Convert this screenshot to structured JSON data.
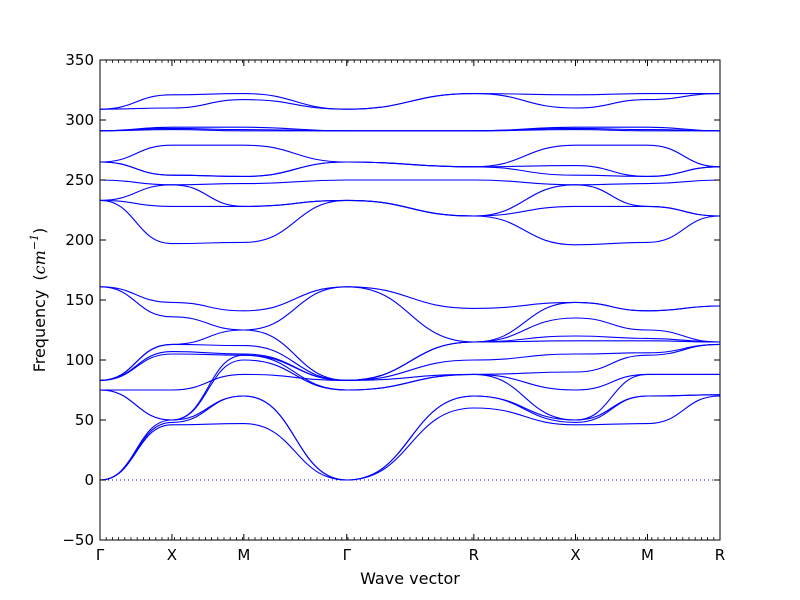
{
  "chart_data": {
    "type": "line",
    "title": "",
    "xlabel": "Wave vector",
    "ylabel": "Frequency",
    "ylabel_unit_open": "(",
    "ylabel_unit_base": "cm",
    "ylabel_unit_exp": "−1",
    "ylabel_unit_close": ")",
    "ylim": [
      -50,
      350
    ],
    "yticks": [
      -50,
      0,
      50,
      100,
      150,
      200,
      250,
      300,
      350
    ],
    "ytick_labels": [
      "−50",
      "0",
      "50",
      "100",
      "150",
      "200",
      "250",
      "300",
      "350"
    ],
    "xlim": [
      0,
      1
    ],
    "kpoints": [
      {
        "label": "Γ",
        "x": 0.0
      },
      {
        "label": "X",
        "x": 0.116
      },
      {
        "label": "M",
        "x": 0.232
      },
      {
        "label": "Γ",
        "x": 0.398
      },
      {
        "label": "R",
        "x": 0.603
      },
      {
        "label": "X",
        "x": 0.767
      },
      {
        "label": "M",
        "x": 0.883
      },
      {
        "label": "R",
        "x": 1.0
      }
    ],
    "zero_line": 0,
    "line_color": "#0000ff",
    "zero_line_color": "#0000ff",
    "grid": false,
    "legend": "none",
    "series": [
      {
        "y": [
          0,
          46,
          47,
          0,
          60,
          46,
          47,
          70
        ]
      },
      {
        "y": [
          0,
          48,
          70,
          0,
          70,
          48,
          70,
          71
        ]
      },
      {
        "y": [
          0,
          50,
          70,
          0,
          70,
          50,
          70,
          71
        ]
      },
      {
        "y": [
          75,
          50,
          100,
          75,
          88,
          50,
          88,
          88
        ]
      },
      {
        "y": [
          75,
          50,
          104,
          75,
          88,
          75,
          88,
          88
        ]
      },
      {
        "y": [
          75,
          75,
          88,
          83,
          88,
          90,
          104,
          113
        ]
      },
      {
        "y": [
          83,
          105,
          104,
          83,
          100,
          105,
          106,
          113
        ]
      },
      {
        "y": [
          83,
          107,
          105,
          83,
          115,
          116,
          116,
          115
        ]
      },
      {
        "y": [
          83,
          113,
          125,
          83,
          115,
          120,
          118,
          115
        ]
      },
      {
        "y": [
          83,
          113,
          112,
          83,
          115,
          135,
          125,
          115
        ]
      },
      {
        "y": [
          161,
          136,
          125,
          161,
          115,
          148,
          141,
          145
        ]
      },
      {
        "y": [
          161,
          148,
          141,
          161,
          143,
          148,
          141,
          145
        ]
      },
      {
        "y": [
          233,
          197,
          198,
          233,
          220,
          196,
          198,
          220
        ]
      },
      {
        "y": [
          233,
          228,
          228,
          233,
          220,
          228,
          228,
          220
        ]
      },
      {
        "y": [
          233,
          246,
          228,
          233,
          220,
          246,
          228,
          220
        ]
      },
      {
        "y": [
          250,
          246,
          247,
          250,
          250,
          246,
          247,
          250
        ]
      },
      {
        "y": [
          265,
          254,
          253,
          265,
          261,
          254,
          253,
          261
        ]
      },
      {
        "y": [
          265,
          254,
          253,
          265,
          261,
          262,
          253,
          261
        ]
      },
      {
        "y": [
          265,
          279,
          279,
          265,
          261,
          279,
          279,
          261
        ]
      },
      {
        "y": [
          291,
          292,
          291,
          291,
          291,
          292,
          291,
          291
        ]
      },
      {
        "y": [
          291,
          293,
          292,
          291,
          291,
          293,
          292,
          291
        ]
      },
      {
        "y": [
          291,
          294,
          294,
          291,
          291,
          294,
          294,
          291
        ]
      },
      {
        "y": [
          309,
          310,
          317,
          309,
          322,
          310,
          317,
          322
        ]
      },
      {
        "y": [
          309,
          321,
          322,
          309,
          322,
          321,
          322,
          322
        ]
      }
    ]
  }
}
